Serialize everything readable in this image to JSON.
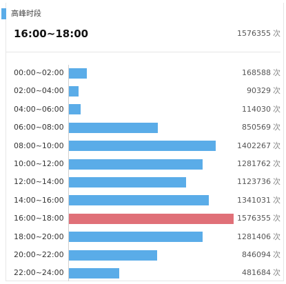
{
  "header": {
    "section_title": "高峰时段",
    "peak_label": "16:00~18:00",
    "peak_count": "1576355",
    "unit": "次"
  },
  "colors": {
    "accent": "#5aace8",
    "bar": "#5aace8",
    "highlight_bar": "#e07078"
  },
  "chart_data": {
    "type": "bar",
    "orientation": "horizontal",
    "title": "",
    "xlabel": "",
    "ylabel": "",
    "unit": "次",
    "highlight_category": "16:00~18:00",
    "categories": [
      "00:00~02:00",
      "02:00~04:00",
      "04:00~06:00",
      "06:00~08:00",
      "08:00~10:00",
      "10:00~12:00",
      "12:00~14:00",
      "14:00~16:00",
      "16:00~18:00",
      "18:00~20:00",
      "20:00~22:00",
      "22:00~24:00"
    ],
    "values": [
      168588,
      90329,
      114030,
      850569,
      1402267,
      1281762,
      1123736,
      1341031,
      1576355,
      1281406,
      846094,
      481684
    ]
  }
}
